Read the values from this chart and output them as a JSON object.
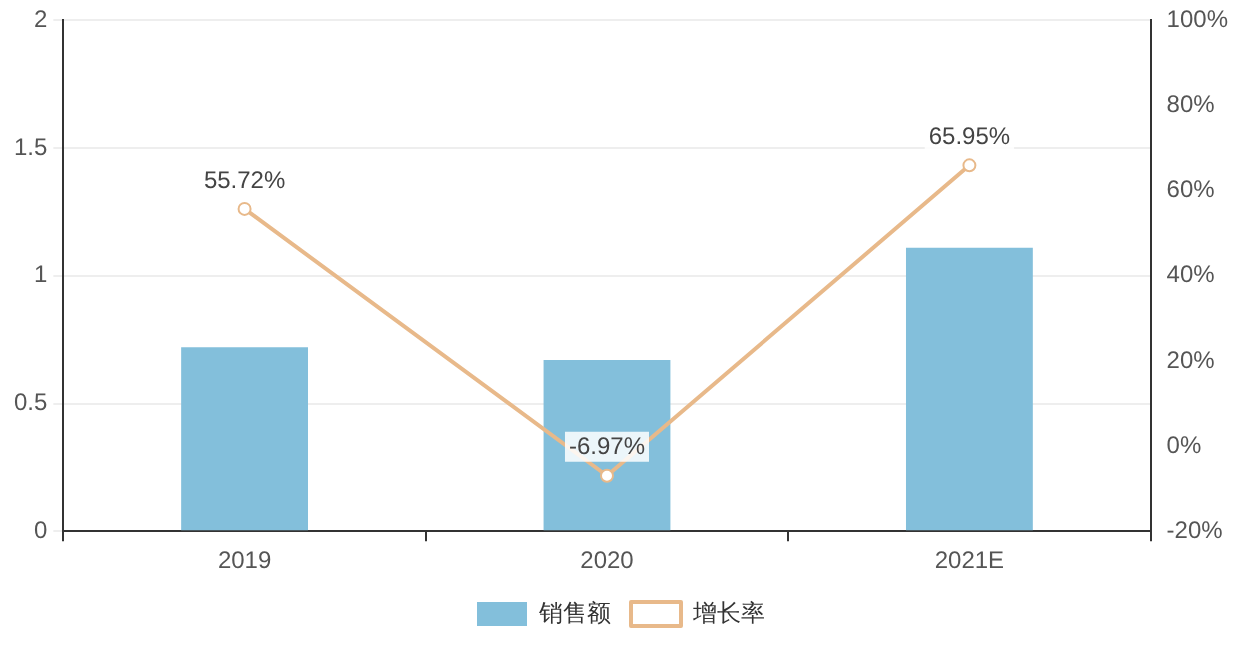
{
  "chart_data": {
    "type": "bar",
    "categories": [
      "2019",
      "2020",
      "2021E"
    ],
    "series": [
      {
        "name": "销售额",
        "color": "#83bfdb",
        "values": [
          0.72,
          0.67,
          1.11
        ]
      },
      {
        "name": "增长率",
        "type": "line",
        "axis": "y2",
        "color": "#e8b98a",
        "values": [
          55.72,
          -6.97,
          65.95
        ],
        "value_labels": [
          "55.72%",
          "-6.97%",
          "65.95%"
        ]
      }
    ],
    "ylim": [
      0,
      2
    ],
    "yticks": [
      0,
      0.5,
      1,
      1.5,
      2
    ],
    "y2lim": [
      -20,
      100
    ],
    "y2ticks": [
      {
        "value": -20,
        "label": "-20%"
      },
      {
        "value": 0,
        "label": "0%"
      },
      {
        "value": 20,
        "label": "20%"
      },
      {
        "value": 40,
        "label": "40%"
      },
      {
        "value": 60,
        "label": "60%"
      },
      {
        "value": 80,
        "label": "80%"
      },
      {
        "value": 100,
        "label": "100%"
      }
    ],
    "grid": "y",
    "legend": "bottom",
    "marker": "circle",
    "line_style": "solid"
  }
}
